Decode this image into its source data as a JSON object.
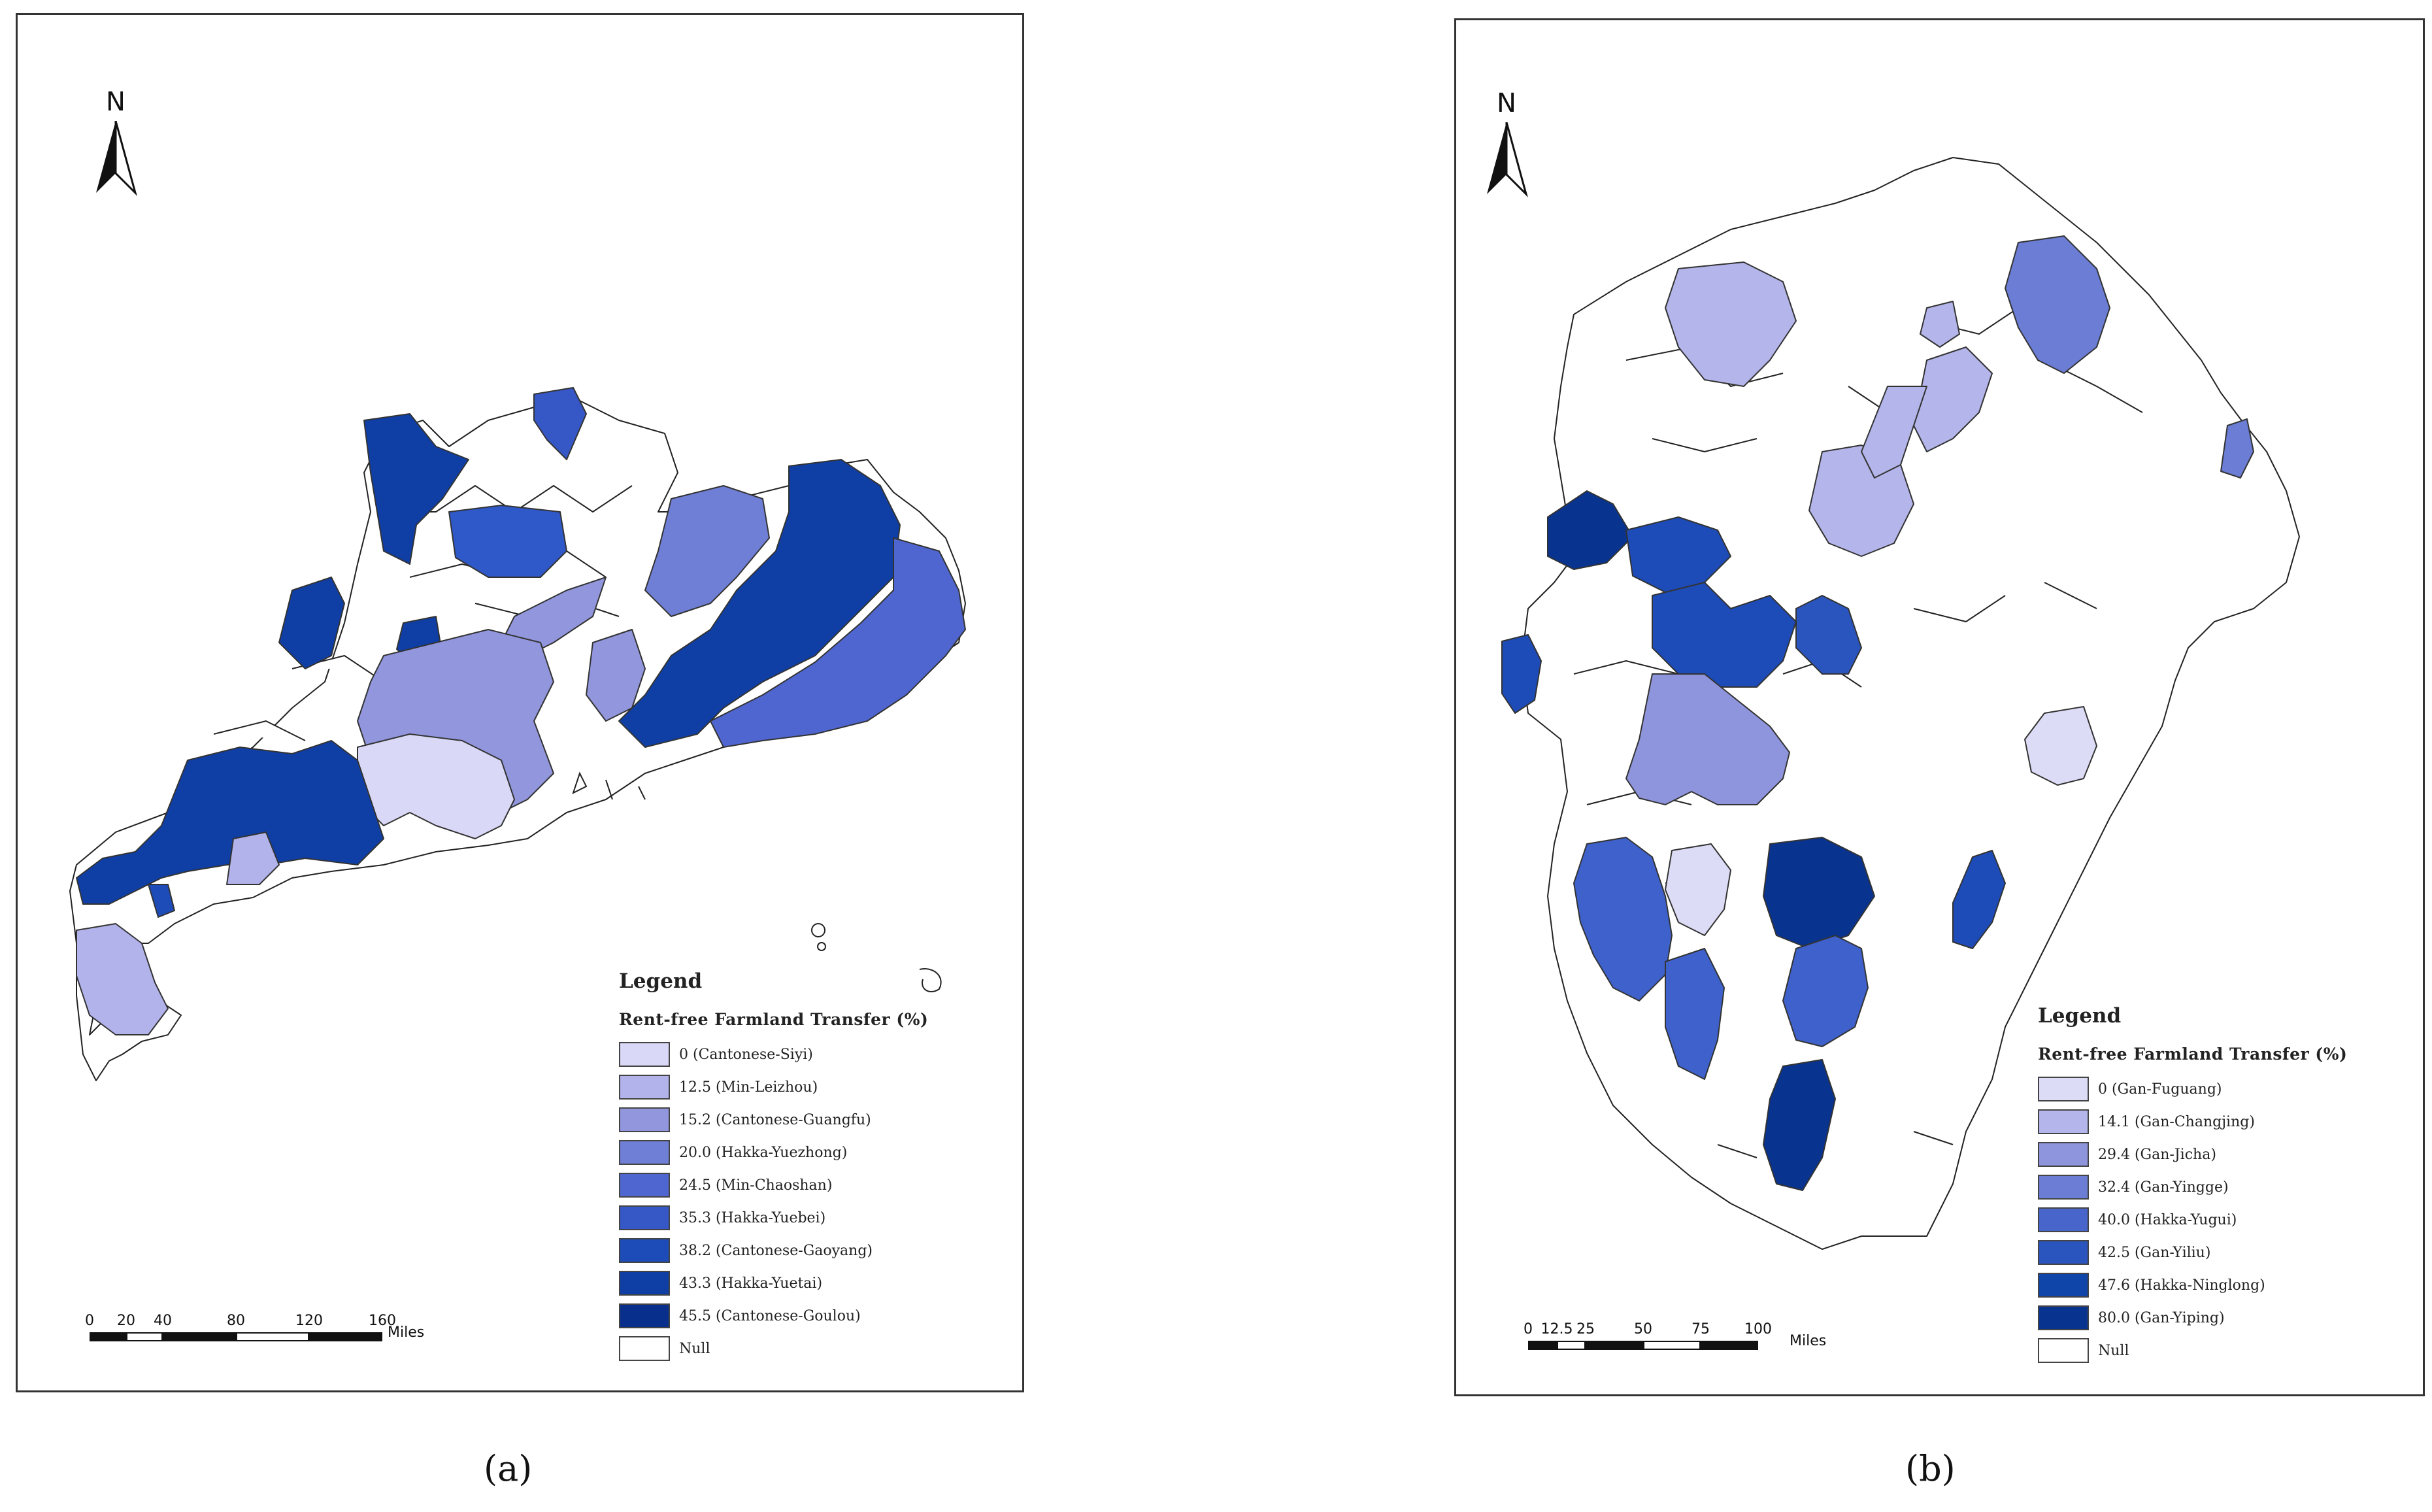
{
  "panels": [
    {
      "id": "a",
      "caption": "(a)",
      "north_label": "N",
      "legend": {
        "title": "Legend",
        "field": "Rent-free Farmland Transfer (%)",
        "items": [
          {
            "value": "0",
            "dialect": "Cantonese-Siyi",
            "color": "#d9d9f7"
          },
          {
            "value": "12.5",
            "dialect": "Min-Leizhou",
            "color": "#b2b3ea"
          },
          {
            "value": "15.2",
            "dialect": "Cantonese-Guangfu",
            "color": "#9296dd"
          },
          {
            "value": "20.0",
            "dialect": "Hakka-Yuezhong",
            "color": "#6f7fd6"
          },
          {
            "value": "24.5",
            "dialect": "Min-Chaoshan",
            "color": "#4f66d0"
          },
          {
            "value": "35.3",
            "dialect": "Hakka-Yuebei",
            "color": "#3657c6"
          },
          {
            "value": "38.2",
            "dialect": "Cantonese-Gaoyang",
            "color": "#1d4bb7"
          },
          {
            "value": "43.3",
            "dialect": "Hakka-Yuetai",
            "color": "#0f3ea5"
          },
          {
            "value": "45.5",
            "dialect": "Cantonese-Goulou",
            "color": "#082f8c"
          },
          {
            "value": "Null",
            "dialect": "",
            "color": "#ffffff"
          }
        ]
      },
      "scale": {
        "ticks": [
          "0",
          "20",
          "40",
          "80",
          "120",
          "160"
        ],
        "unit": "Miles"
      }
    },
    {
      "id": "b",
      "caption": "(b)",
      "north_label": "N",
      "legend": {
        "title": "Legend",
        "field": "Rent-free Farmland Transfer (%)",
        "items": [
          {
            "value": "0",
            "dialect": "Gan-Fuguang",
            "color": "#dcdcf7"
          },
          {
            "value": "14.1",
            "dialect": "Gan-Changjing",
            "color": "#b4b5ea"
          },
          {
            "value": "29.4",
            "dialect": "Gan-Jicha",
            "color": "#8f95dc"
          },
          {
            "value": "32.4",
            "dialect": "Gan-Yingge",
            "color": "#6b7dd4"
          },
          {
            "value": "40.0",
            "dialect": "Hakka-Yugui",
            "color": "#4865cc"
          },
          {
            "value": "42.5",
            "dialect": "Gan-Yiliu",
            "color": "#2a54be"
          },
          {
            "value": "47.6",
            "dialect": "Hakka-Ninglong",
            "color": "#0f44a8"
          },
          {
            "value": "80.0",
            "dialect": "Gan-Yiping",
            "color": "#08338f"
          },
          {
            "value": "Null",
            "dialect": "",
            "color": "#ffffff"
          }
        ]
      },
      "scale": {
        "ticks": [
          "0",
          "12.5",
          "25",
          "50",
          "75",
          "100"
        ],
        "unit": "Miles"
      }
    }
  ]
}
